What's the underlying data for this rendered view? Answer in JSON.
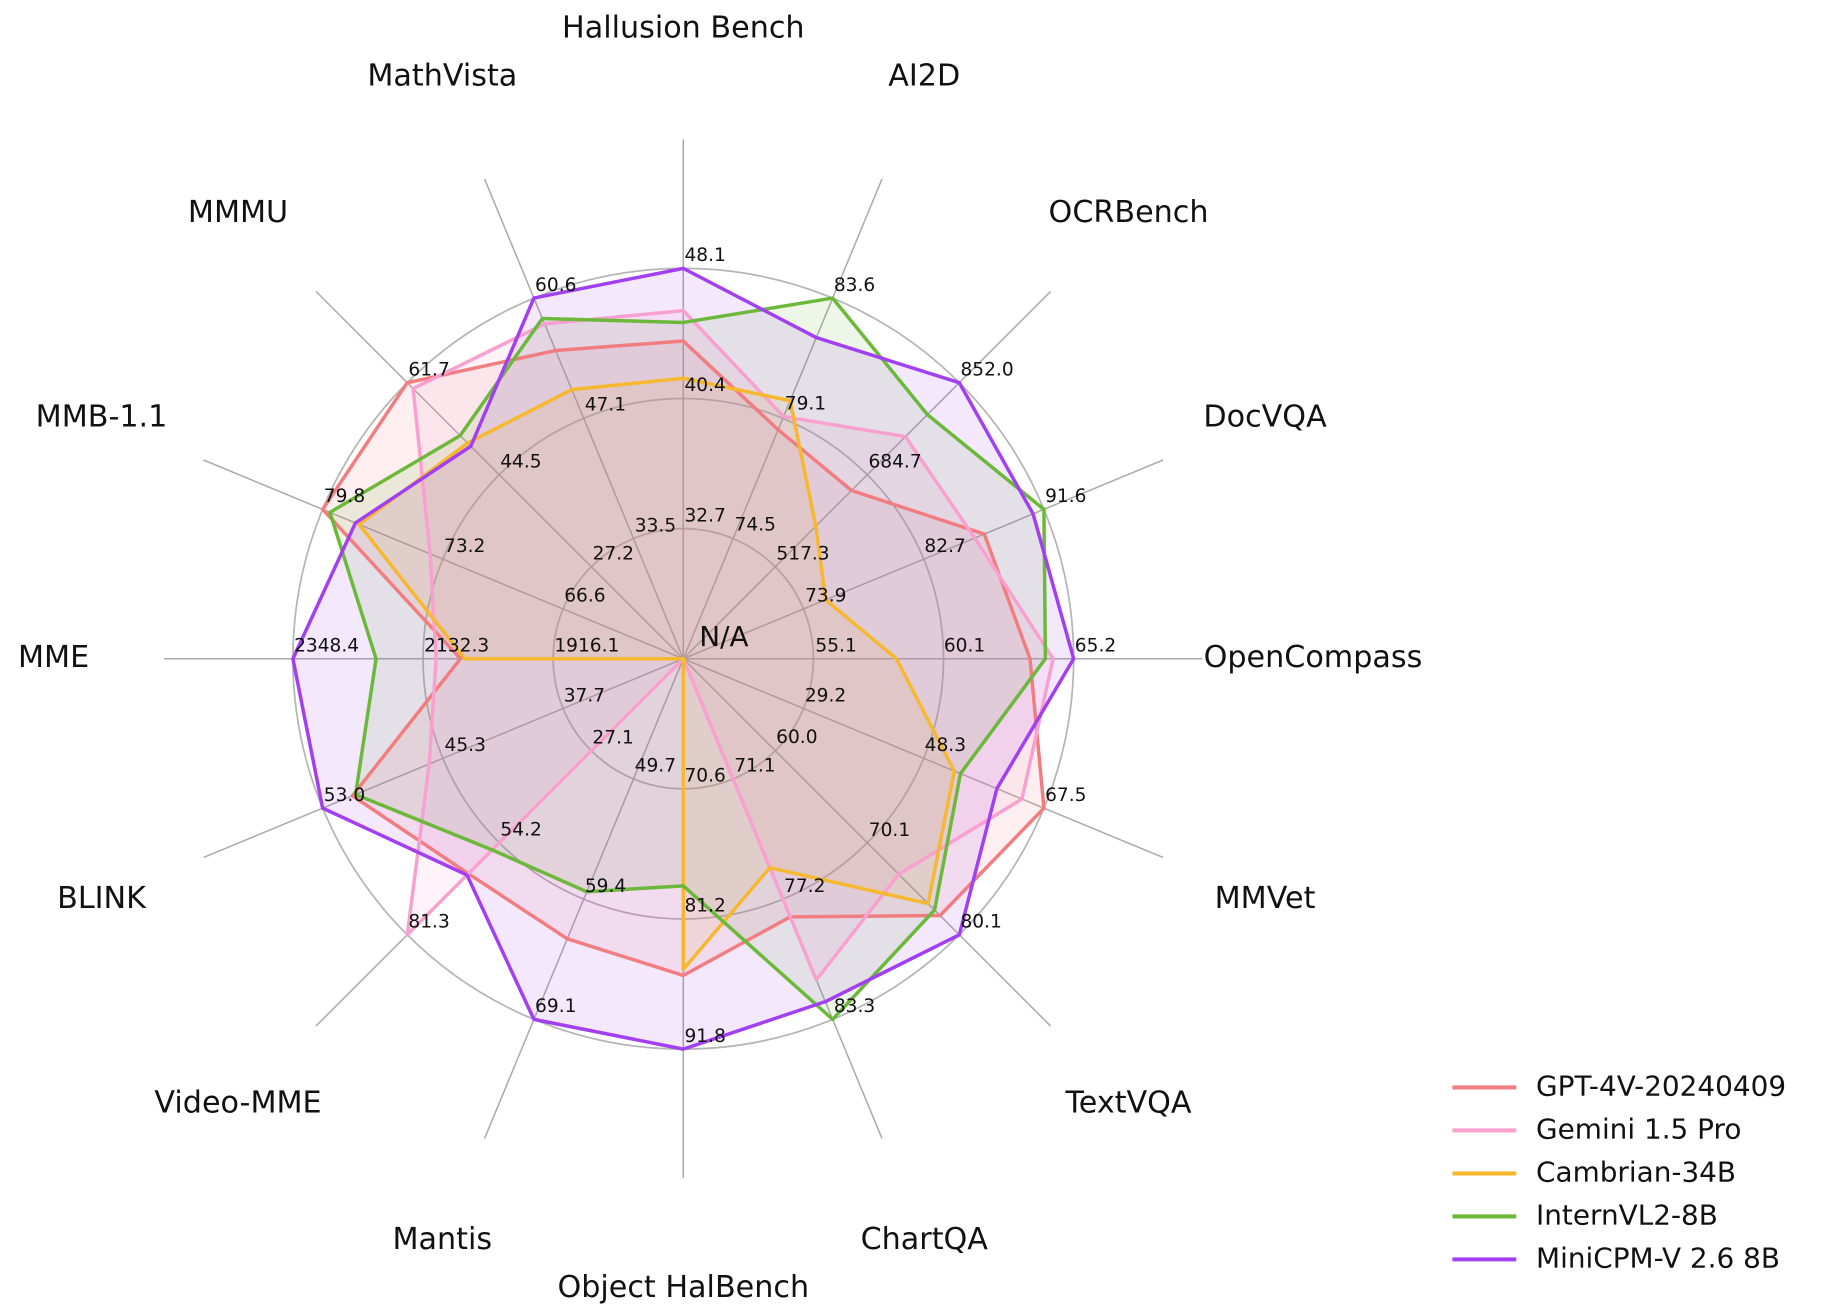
{
  "chart_data": {
    "type": "radar",
    "center_label": "N/A",
    "grid": true,
    "legend": "lower right",
    "axes": [
      {
        "name": "Hallusion Bench",
        "rlim": [
          25.0,
          48.1
        ],
        "ticks": [
          32.7,
          40.4,
          48.1
        ]
      },
      {
        "name": "AI2D",
        "rlim": [
          69.9,
          83.6
        ],
        "ticks": [
          74.5,
          79.1,
          83.6
        ]
      },
      {
        "name": "OCRBench",
        "rlim": [
          350.0,
          852.0
        ],
        "ticks": [
          517.3,
          684.7,
          {
            "value": 852,
            "label": "852.0"
          }
        ]
      },
      {
        "name": "DocVQA",
        "rlim": [
          65.0,
          91.6
        ],
        "ticks": [
          73.9,
          82.7,
          91.6
        ]
      },
      {
        "name": "OpenCompass",
        "rlim": [
          50.0,
          65.2
        ],
        "ticks": [
          55.1,
          60.1,
          65.2
        ]
      },
      {
        "name": "MMVet",
        "rlim": [
          10.0,
          67.5
        ],
        "ticks": [
          29.2,
          48.3,
          67.5
        ]
      },
      {
        "name": "TextVQA",
        "rlim": [
          50.0,
          80.1
        ],
        "ticks": [
          {
            "value": 60,
            "label": "60.0"
          },
          70.1,
          80.1
        ]
      },
      {
        "name": "ChartQA",
        "rlim": [
          65.0,
          83.3
        ],
        "ticks": [
          71.1,
          77.2,
          83.3
        ]
      },
      {
        "name": "Object HalBench",
        "rlim": [
          60.0,
          91.8
        ],
        "ticks": [
          70.6,
          81.2,
          91.8
        ]
      },
      {
        "name": "Mantis",
        "rlim": [
          40.0,
          69.1
        ],
        "ticks": [
          49.7,
          59.4,
          69.1
        ]
      },
      {
        "name": "Video-MME",
        "rlim": [
          0,
          81.3
        ],
        "ticks": [
          27.1,
          54.2,
          81.3
        ]
      },
      {
        "name": "BLINK",
        "rlim": [
          30.0,
          53.0
        ],
        "ticks": [
          37.7,
          45.3,
          {
            "value": 53,
            "label": "53.0"
          }
        ]
      },
      {
        "name": "MME",
        "rlim": [
          1700.0,
          2348.4
        ],
        "ticks": [
          1916.1,
          2132.3,
          2348.4
        ]
      },
      {
        "name": "MMB-1.1",
        "rlim": [
          60.0,
          79.8
        ],
        "ticks": [
          66.6,
          73.2,
          79.8
        ]
      },
      {
        "name": "MMMU",
        "rlim": [
          10.0,
          61.7
        ],
        "ticks": [
          27.2,
          44.5,
          61.7
        ]
      },
      {
        "name": "MathVista",
        "rlim": [
          20.0,
          60.6
        ],
        "ticks": [
          33.5,
          47.1,
          60.6
        ]
      }
    ],
    "series": [
      {
        "name": "GPT-4V-20240409",
        "color": "#f27d80",
        "values": [
          43.8,
          78.6,
          656,
          87.2,
          63.5,
          67.5,
          78.0,
          78.1,
          85.8,
          62.6,
          63.3,
          51.1,
          2070.2,
          79.8,
          61.7,
          54.7
        ]
      },
      {
        "name": "Gemini 1.5 Pro",
        "color": "#f8a0d0",
        "values": [
          45.6,
          79.1,
          754,
          86.5,
          64.4,
          64.0,
          73.5,
          81.3,
          null,
          null,
          81.3,
          46.2,
          2110.6,
          73.9,
          60.6,
          57.7
        ]
      },
      {
        "name": "Cambrian-34B",
        "color": "#f5b82e",
        "values": [
          41.6,
          79.7,
          591,
          75.5,
          58.3,
          53.2,
          76.7,
          75.6,
          85.3,
          null,
          null,
          null,
          2063,
          77.8,
          50.4,
          50.3
        ]
      },
      {
        "name": "InternVL2-8B",
        "color": "#6cb83a",
        "values": [
          44.9,
          83.6,
          794,
          91.6,
          64.1,
          54.2,
          77.4,
          83.3,
          78.5,
          58.8,
          56.3,
          50.9,
          2210.3,
          79.4,
          51.8,
          58.3
        ]
      },
      {
        "name": "MiniCPM-V 2.6 8B",
        "color": "#a23ff0",
        "values": [
          48.1,
          82.1,
          852,
          90.8,
          65.2,
          60.0,
          80.1,
          82.4,
          91.8,
          69.1,
          63.7,
          53.0,
          2348.4,
          78.0,
          49.8,
          60.6
        ]
      }
    ]
  }
}
